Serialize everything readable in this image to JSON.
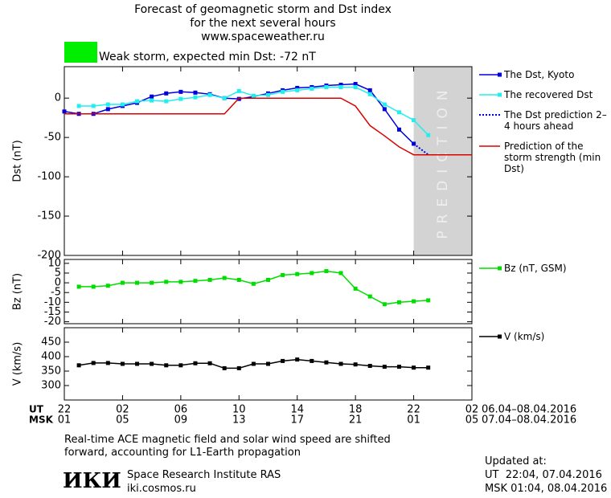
{
  "title_lines": [
    "Forecast of geomagnetic storm and Dst index",
    "for the next several hours",
    "www.spaceweather.ru"
  ],
  "storm_label": "Weak storm, expected min Dst: -72 nT",
  "storm_color": "#00ee00",
  "chart_data": [
    {
      "type": "line",
      "ylabel": "Dst (nT)",
      "xlim": [
        0,
        28
      ],
      "ylim": [
        -200,
        40
      ],
      "yticks": [
        0,
        -50,
        -100,
        -150,
        -200
      ],
      "prediction_band": [
        24,
        28
      ],
      "prediction_label": "PREDICTION",
      "prediction_color": "#d3d3d3",
      "series": [
        {
          "name": "The Dst, Kyoto",
          "color": "#0000dd",
          "marker": "square",
          "x": [
            0,
            1,
            2,
            3,
            4,
            5,
            6,
            7,
            8,
            9,
            10,
            11,
            12,
            13,
            14,
            15,
            16,
            17,
            18,
            19,
            20,
            21,
            22,
            23,
            24
          ],
          "values": [
            -17,
            -20,
            -20,
            -14,
            -10,
            -6,
            2,
            6,
            8,
            7,
            5,
            0,
            -1,
            2,
            6,
            10,
            13,
            14,
            16,
            17,
            18,
            10,
            -14,
            -40,
            -58
          ]
        },
        {
          "name": "The recovered Dst",
          "color": "#22eeee",
          "marker": "square",
          "x": [
            1,
            2,
            3,
            4,
            5,
            6,
            7,
            8,
            9,
            10,
            11,
            12,
            13,
            14,
            15,
            16,
            17,
            18,
            19,
            20,
            21,
            22,
            23,
            24,
            25
          ],
          "values": [
            -10,
            -10,
            -8,
            -8,
            -4,
            -3,
            -4,
            -1,
            1,
            4,
            0,
            9,
            3,
            4,
            8,
            10,
            12,
            14,
            14,
            14,
            5,
            -8,
            -18,
            -28,
            -47
          ]
        },
        {
          "name": "The Dst prediction 2–4 hours ahead",
          "color": "#0000dd",
          "dash": "dotted",
          "x": [
            24,
            25
          ],
          "values": [
            -58,
            -72
          ]
        },
        {
          "name": "Prediction of the storm strength (min Dst)",
          "color": "#dd0000",
          "x": [
            0,
            11,
            12,
            19,
            20,
            21,
            22,
            23,
            24,
            28
          ],
          "values": [
            -20,
            -20,
            0,
            0,
            -10,
            -35,
            -48,
            -62,
            -72,
            -72
          ]
        }
      ]
    },
    {
      "type": "line",
      "ylabel": "Bz (nT)",
      "xlim": [
        0,
        28
      ],
      "ylim": [
        -21,
        12
      ],
      "yticks": [
        10,
        5,
        0,
        -5,
        -10,
        -15,
        -20
      ],
      "series": [
        {
          "name": "Bz (nT, GSM)",
          "color": "#00dd00",
          "marker": "square",
          "x": [
            1,
            2,
            3,
            4,
            5,
            6,
            7,
            8,
            9,
            10,
            11,
            12,
            13,
            14,
            15,
            16,
            17,
            18,
            19,
            20,
            21,
            22,
            23,
            24,
            25
          ],
          "values": [
            -2,
            -2,
            -1.5,
            0,
            0,
            0,
            0.5,
            0.5,
            1,
            1.5,
            2.5,
            1.5,
            -0.5,
            1.5,
            4,
            4.5,
            5,
            6,
            5,
            -3,
            -7,
            -11,
            -10,
            -9.5,
            -9
          ]
        }
      ]
    },
    {
      "type": "line",
      "ylabel": "V (km/s)",
      "xlim": [
        0,
        28
      ],
      "ylim": [
        250,
        500
      ],
      "yticks": [
        450,
        400,
        350,
        300
      ],
      "xlabel": "UT",
      "x2label": "MSK",
      "xdate": "06.04–08.04.2016",
      "x2date": "07.04–08.04.2016",
      "xticks": [
        {
          "value": 0,
          "label": "22"
        },
        {
          "value": 4,
          "label": "02"
        },
        {
          "value": 8,
          "label": "06"
        },
        {
          "value": 12,
          "label": "10"
        },
        {
          "value": 16,
          "label": "14"
        },
        {
          "value": 20,
          "label": "18"
        },
        {
          "value": 24,
          "label": "22"
        },
        {
          "value": 28,
          "label": "02"
        }
      ],
      "x2ticks": [
        {
          "value": 0,
          "label": "01"
        },
        {
          "value": 4,
          "label": "05"
        },
        {
          "value": 8,
          "label": "09"
        },
        {
          "value": 12,
          "label": "13"
        },
        {
          "value": 16,
          "label": "17"
        },
        {
          "value": 20,
          "label": "21"
        },
        {
          "value": 24,
          "label": "01"
        },
        {
          "value": 28,
          "label": "05"
        }
      ],
      "series": [
        {
          "name": "V (km/s)",
          "color": "#000000",
          "marker": "square",
          "x": [
            1,
            2,
            3,
            4,
            5,
            6,
            7,
            8,
            9,
            10,
            11,
            12,
            13,
            14,
            15,
            16,
            17,
            18,
            19,
            20,
            21,
            22,
            23,
            24,
            25
          ],
          "values": [
            370,
            378,
            378,
            375,
            375,
            375,
            370,
            370,
            377,
            377,
            360,
            360,
            375,
            375,
            385,
            390,
            385,
            380,
            375,
            373,
            368,
            365,
            365,
            362,
            362
          ]
        }
      ]
    }
  ],
  "footer": {
    "note": [
      "Real-time ACE magnetic field and solar wind speed are shifted",
      "forward, accounting for L1-Earth propagation"
    ],
    "logo": "ИКИ",
    "institute": "Space Research Institute RAS",
    "site": "iki.cosmos.ru",
    "updated": [
      "Updated at:",
      "UT  22:04, 07.04.2016",
      "MSK 01:04, 08.04.2016"
    ]
  }
}
